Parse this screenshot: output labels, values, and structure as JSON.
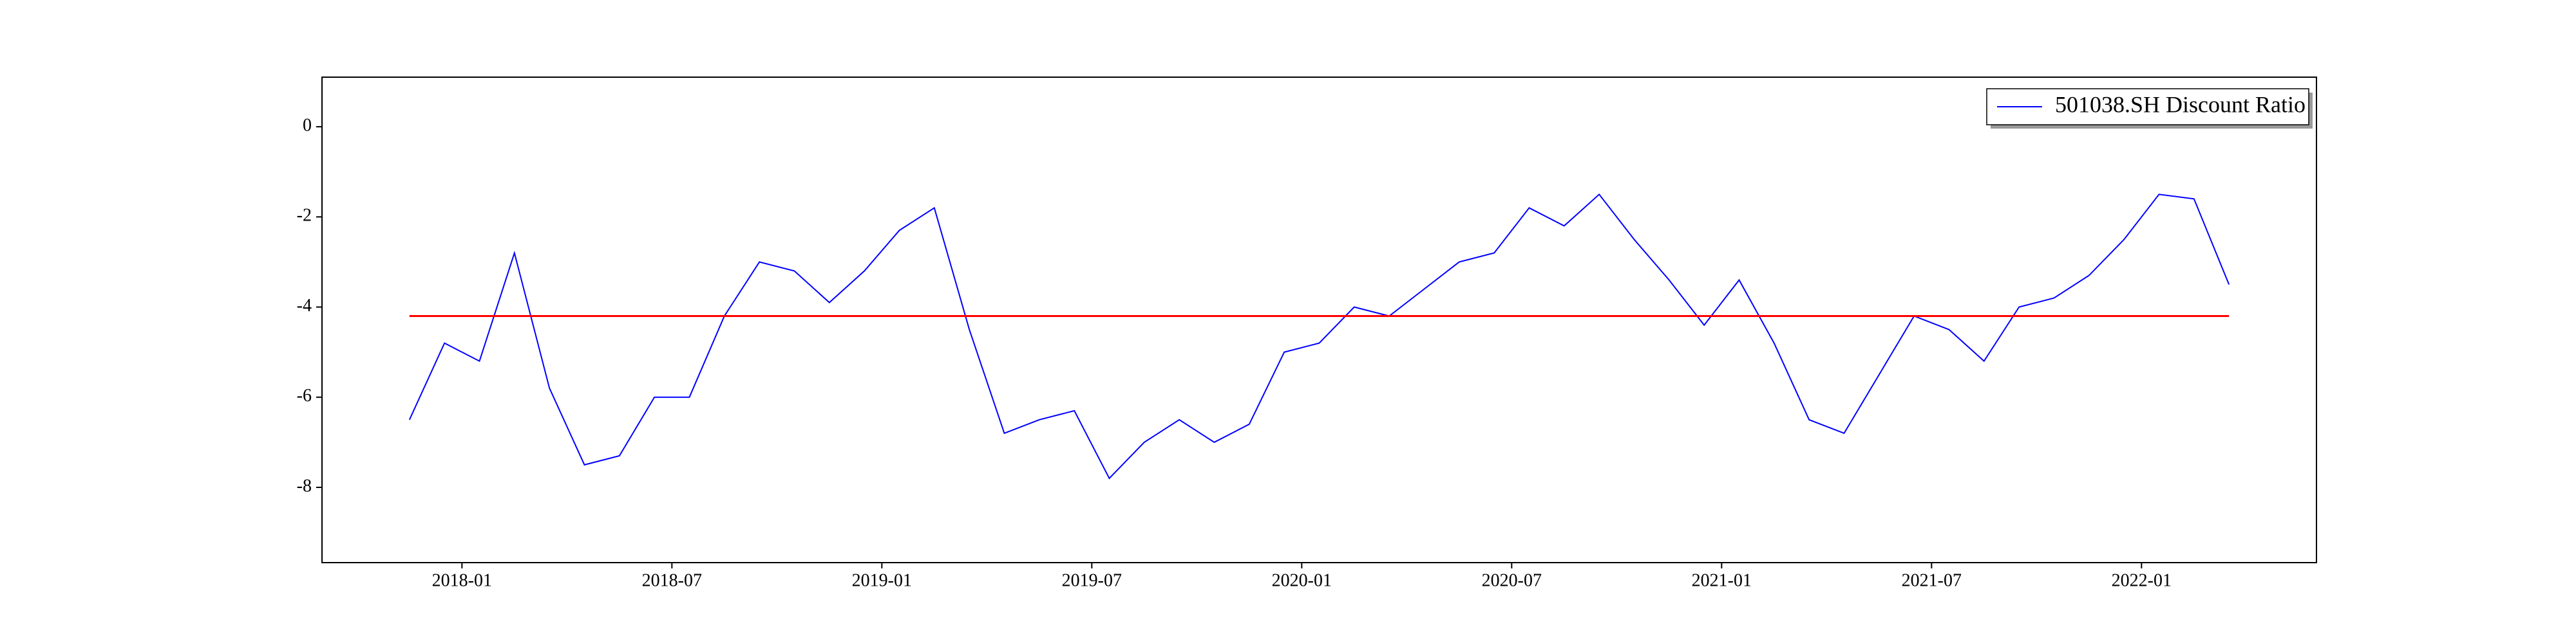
{
  "chart_data": {
    "type": "line",
    "x": [
      "2017-11",
      "2017-12",
      "2018-01",
      "2018-02",
      "2018-03",
      "2018-04",
      "2018-05",
      "2018-06",
      "2018-07",
      "2018-08",
      "2018-09",
      "2018-10",
      "2018-11",
      "2018-12",
      "2019-01",
      "2019-02",
      "2019-03",
      "2019-04",
      "2019-05",
      "2019-06",
      "2019-07",
      "2019-08",
      "2019-09",
      "2019-10",
      "2019-11",
      "2019-12",
      "2020-01",
      "2020-02",
      "2020-03",
      "2020-04",
      "2020-05",
      "2020-06",
      "2020-07",
      "2020-08",
      "2020-09",
      "2020-10",
      "2020-11",
      "2020-12",
      "2021-01",
      "2021-02",
      "2021-03",
      "2021-04",
      "2021-05",
      "2021-06",
      "2021-07",
      "2021-08",
      "2021-09",
      "2021-10",
      "2021-11",
      "2021-12",
      "2022-01",
      "2022-02",
      "2022-03"
    ],
    "series": [
      {
        "name": "501038.SH Discount Ratio",
        "color": "#0000ff",
        "values": [
          -6.5,
          -4.8,
          -5.2,
          -2.8,
          -5.8,
          -7.5,
          -7.3,
          -6.0,
          -6.0,
          -4.2,
          -3.0,
          -3.2,
          -3.9,
          -3.2,
          -2.3,
          -1.8,
          -4.5,
          -6.8,
          -6.5,
          -6.3,
          -7.8,
          -7.0,
          -6.5,
          -7.0,
          -6.6,
          -5.0,
          -4.8,
          -4.0,
          -4.2,
          -3.6,
          -3.0,
          -2.8,
          -1.8,
          -2.2,
          -1.5,
          -2.5,
          -3.4,
          -4.4,
          -3.4,
          -4.8,
          -6.5,
          -6.8,
          -5.5,
          -4.2,
          -4.5,
          -5.2,
          -4.0,
          -3.8,
          -3.3,
          -2.5,
          -1.5,
          -1.6,
          -3.5
        ]
      }
    ],
    "hline": {
      "value": -4.2,
      "color": "#ff0000"
    },
    "xlim": [
      "2017-09",
      "2022-06"
    ],
    "xticks": [
      "2018-01",
      "2018-07",
      "2019-01",
      "2019-07",
      "2020-01",
      "2020-07",
      "2021-01",
      "2021-07",
      "2022-01"
    ],
    "ylim": [
      -9.67,
      1.1
    ],
    "yticks": [
      -8,
      -6,
      -4,
      -2,
      0
    ],
    "legend": "upper right"
  }
}
